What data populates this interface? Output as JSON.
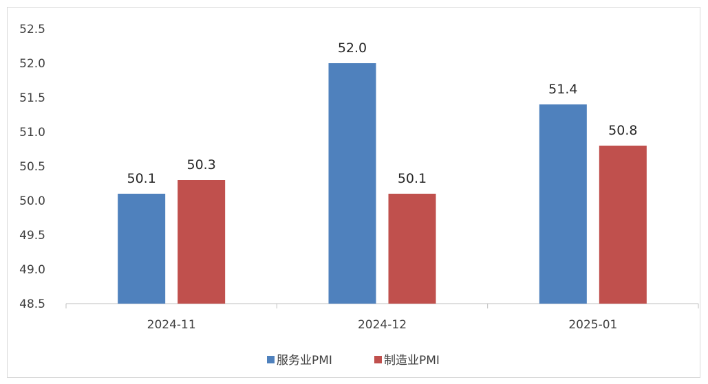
{
  "chart_data": {
    "type": "bar",
    "categories": [
      "2024-11",
      "2024-12",
      "2025-01"
    ],
    "series": [
      {
        "name": "服务业PMI",
        "values": [
          50.1,
          52.0,
          51.4
        ],
        "color": "#4f81bd"
      },
      {
        "name": "制造业PMI",
        "values": [
          50.3,
          50.1,
          50.8
        ],
        "color": "#c0504d"
      }
    ],
    "yticks": [
      "48.5",
      "49.0",
      "49.5",
      "50.0",
      "50.5",
      "51.0",
      "51.5",
      "52.0",
      "52.5"
    ],
    "ylim": [
      48.5,
      52.5
    ],
    "grid": false,
    "legend": "bottom",
    "data_label_decimals": 1
  }
}
